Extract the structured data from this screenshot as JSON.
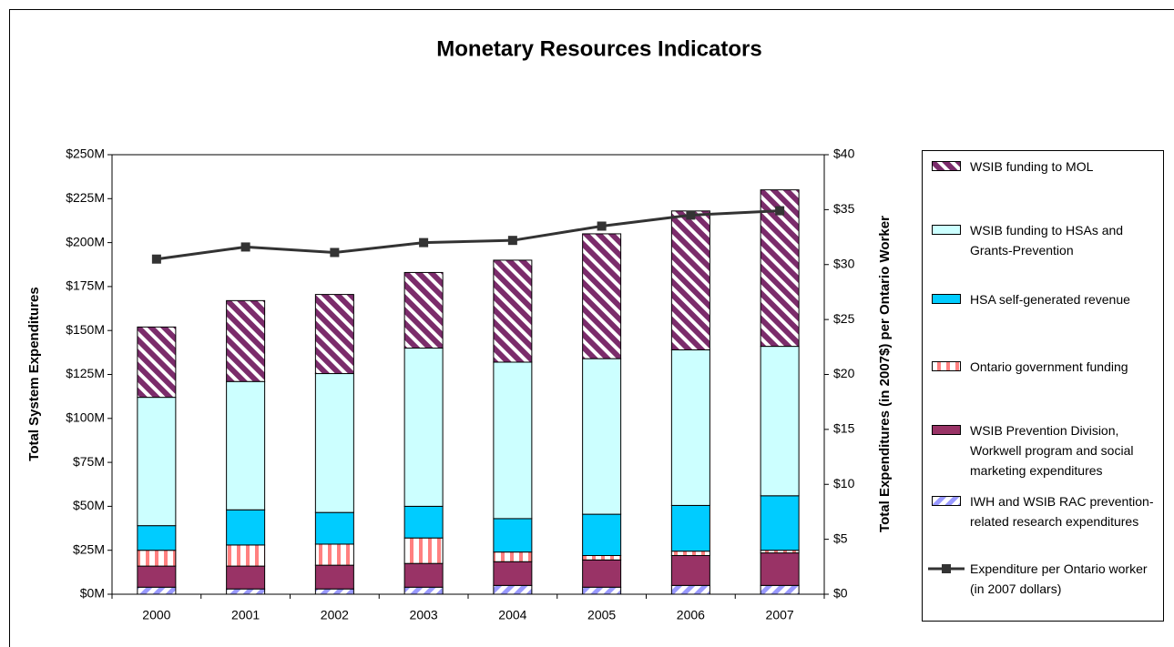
{
  "chart_data": {
    "type": "bar",
    "title": "Monetary Resources Indicators",
    "y_label": "Total System Expenditures",
    "y2_label": "Total Expenditures (in 2007$) per Ontario Worker",
    "categories": [
      "2000",
      "2001",
      "2002",
      "2003",
      "2004",
      "2005",
      "2006",
      "2007"
    ],
    "stacked": true,
    "series": [
      {
        "name": "IWH and WSIB RAC prevention-related research expenditures",
        "color": "#9999ff",
        "hatch": "slash",
        "values": [
          4,
          3,
          3,
          4,
          5,
          4,
          5,
          5
        ]
      },
      {
        "name": "WSIB Prevention Division, Workwell program and social marketing expenditures",
        "color": "#993366",
        "values": [
          12,
          13,
          13.5,
          13.5,
          13.5,
          15.5,
          17,
          18.5
        ]
      },
      {
        "name": "Ontario government funding",
        "color": "#ff8080",
        "hatch": "vertical",
        "values": [
          9,
          12,
          12,
          14.5,
          5.5,
          2.5,
          2.5,
          1.5
        ]
      },
      {
        "name": "HSA self-generated revenue",
        "color": "#00ccff",
        "values": [
          14,
          20,
          18,
          18,
          19,
          23.5,
          26,
          31
        ]
      },
      {
        "name": "WSIB funding to HSAs and Grants-Prevention",
        "color": "#ccffff",
        "values": [
          73,
          73,
          79,
          90,
          89,
          88.5,
          88.5,
          85
        ]
      },
      {
        "name": "WSIB funding to MOL",
        "color": "#7b2c6b",
        "hatch": "backslash",
        "values": [
          40,
          46,
          45,
          43,
          58,
          71,
          79,
          89
        ]
      },
      {
        "name": "Expenditure per Ontario worker (in 2007 dollars)",
        "type": "line",
        "axis": "y2",
        "color": "#333333",
        "values": [
          30.5,
          31.6,
          31.1,
          32.0,
          32.2,
          33.5,
          34.5,
          34.9
        ]
      }
    ],
    "ylim": [
      0,
      250
    ],
    "yticks": [
      {
        "value": 0,
        "label": "$0M"
      },
      {
        "value": 25,
        "label": "$25M"
      },
      {
        "value": 50,
        "label": "$50M"
      },
      {
        "value": 75,
        "label": "$75M"
      },
      {
        "value": 100,
        "label": "$100M"
      },
      {
        "value": 125,
        "label": "$125M"
      },
      {
        "value": 150,
        "label": "$150M"
      },
      {
        "value": 175,
        "label": "$175M"
      },
      {
        "value": 200,
        "label": "$200M"
      },
      {
        "value": 225,
        "label": "$225M"
      },
      {
        "value": 250,
        "label": "$250M"
      }
    ],
    "y2lim": [
      0,
      40
    ],
    "y2ticks": [
      {
        "value": 0,
        "label": "$0"
      },
      {
        "value": 5,
        "label": "$5"
      },
      {
        "value": 10,
        "label": "$10"
      },
      {
        "value": 15,
        "label": "$15"
      },
      {
        "value": 20,
        "label": "$20"
      },
      {
        "value": 25,
        "label": "$25"
      },
      {
        "value": 30,
        "label": "$30"
      },
      {
        "value": 35,
        "label": "$35"
      },
      {
        "value": 40,
        "label": "$40"
      }
    ],
    "grid": false,
    "legend": "right"
  }
}
